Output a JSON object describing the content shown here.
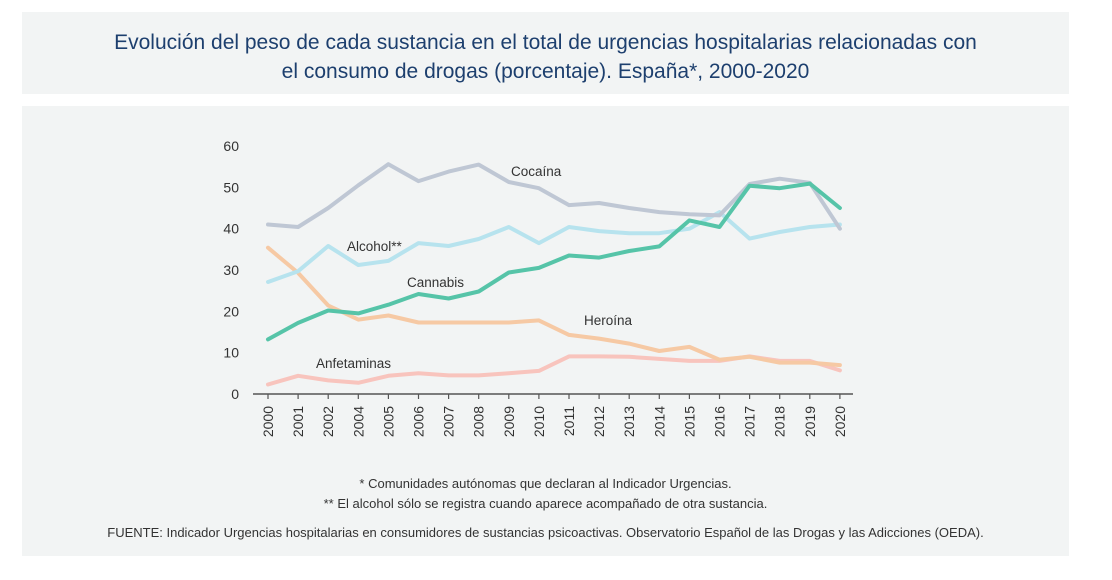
{
  "header": {
    "title_line1": "Evolución del peso de cada sustancia en el total de urgencias hospitalarias relacionadas con",
    "title_line2": "el consumo de drogas (porcentaje). España*, 2000-2020"
  },
  "footer": {
    "note1": "* Comunidades autónomas que declaran al Indicador Urgencias.",
    "note2": "** El alcohol sólo se registra cuando aparece acompañado de otra sustancia.",
    "source": "FUENTE: Indicador Urgencias hospitalarias en consumidores de sustancias psicoactivas. Observatorio Español de las Drogas y las Adicciones (OEDA)."
  },
  "chart_data": {
    "type": "line",
    "title": "Evolución del peso de cada sustancia en el total de urgencias hospitalarias relacionadas con el consumo de drogas (porcentaje). España*, 2000-2020",
    "xlabel": "",
    "ylabel": "",
    "ylim": [
      0,
      60
    ],
    "yticks": [
      "0",
      "10",
      "20",
      "30",
      "40",
      "50",
      "60"
    ],
    "grid": false,
    "legend": "inline labels",
    "categories": [
      "2000",
      "2001",
      "2002",
      "2004",
      "2005",
      "2006",
      "2007",
      "2008",
      "2009",
      "2010",
      "2011",
      "2012",
      "2013",
      "2014",
      "2015",
      "2016",
      "2017",
      "2018",
      "2019",
      "2020"
    ],
    "series": [
      {
        "name": "Cocaína",
        "color": "#bfc7d4",
        "values": [
          41.0,
          40.4,
          45.0,
          50.5,
          55.6,
          51.5,
          53.8,
          55.5,
          51.3,
          49.8,
          45.7,
          46.2,
          45.0,
          44.0,
          43.5,
          43.2,
          50.8,
          52.1,
          51.1,
          40.0
        ]
      },
      {
        "name": "Alcohol**",
        "color": "#b7e3ee",
        "values": [
          27.1,
          29.7,
          35.8,
          31.2,
          32.2,
          36.5,
          35.8,
          37.5,
          40.4,
          36.5,
          40.4,
          39.4,
          38.9,
          38.9,
          40.0,
          44.0,
          37.6,
          39.2,
          40.4,
          41.0
        ]
      },
      {
        "name": "Cannabis",
        "color": "#56c4a8",
        "values": [
          13.2,
          17.2,
          20.2,
          19.5,
          21.6,
          24.2,
          23.1,
          24.8,
          29.4,
          30.5,
          33.5,
          33.0,
          34.6,
          35.7,
          42.0,
          40.4,
          50.4,
          49.8,
          50.9,
          45.0
        ]
      },
      {
        "name": "Heroína",
        "color": "#f6c9a4",
        "values": [
          35.4,
          29.3,
          21.4,
          18.0,
          19.0,
          17.3,
          17.3,
          17.3,
          17.3,
          17.8,
          14.3,
          13.4,
          12.2,
          10.4,
          11.4,
          8.3,
          9.0,
          7.6,
          7.6,
          7.0
        ]
      },
      {
        "name": "Anfetaminas",
        "color": "#f8c4bd",
        "values": [
          2.3,
          4.4,
          3.3,
          2.7,
          4.4,
          5.0,
          4.5,
          4.5,
          5.0,
          5.6,
          9.1,
          9.1,
          9.0,
          8.5,
          8.0,
          8.0,
          9.1,
          8.0,
          8.0,
          5.7
        ]
      }
    ],
    "annotations": [
      {
        "text": "Cocaína",
        "series": "Cocaína"
      },
      {
        "text": "Alcohol**",
        "series": "Alcohol**"
      },
      {
        "text": "Cannabis",
        "series": "Cannabis"
      },
      {
        "text": "Heroína",
        "series": "Heroína"
      },
      {
        "text": "Anfetaminas",
        "series": "Anfetaminas"
      }
    ]
  }
}
